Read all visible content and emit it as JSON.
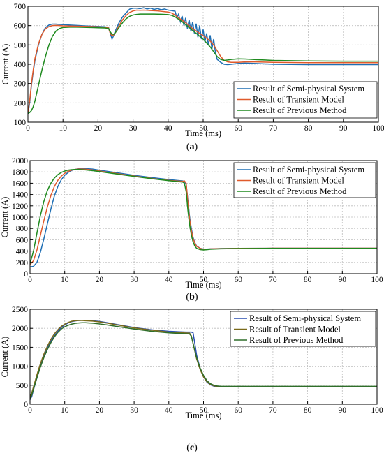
{
  "chart_data": [
    {
      "type": "line",
      "caption_letter": "a",
      "xlabel": "Time (ms)",
      "ylabel": "Current (A)",
      "xlim": [
        0,
        100
      ],
      "ylim": [
        100,
        700
      ],
      "xticks": [
        0,
        10,
        20,
        30,
        40,
        50,
        60,
        70,
        80,
        90,
        100
      ],
      "yticks": [
        100,
        200,
        300,
        400,
        500,
        600,
        700
      ],
      "grid": true,
      "legend_position": "bottom-right",
      "series": [
        {
          "name": "Result of Semi-physical System",
          "color": "#1f6fb4",
          "x": [
            0,
            0.5,
            1,
            1.5,
            2,
            3,
            4,
            5,
            6,
            7,
            8,
            9,
            10,
            12,
            14,
            16,
            18,
            20,
            22,
            23,
            23.5,
            24,
            24.5,
            25,
            26,
            27,
            28,
            29,
            30,
            31,
            32,
            33,
            34,
            35,
            36,
            37,
            38,
            39,
            40,
            41,
            42,
            42.5,
            43,
            43.5,
            44,
            44.5,
            45,
            45.5,
            46,
            46.5,
            47,
            47.5,
            48,
            48.5,
            49,
            49.5,
            50,
            50.5,
            51,
            51.5,
            52,
            52.5,
            53,
            53.5,
            54,
            55,
            56,
            57,
            58,
            60,
            62,
            65,
            70,
            80,
            90,
            100
          ],
          "y": [
            140,
            200,
            290,
            360,
            420,
            500,
            555,
            590,
            603,
            608,
            608,
            606,
            605,
            603,
            601,
            599,
            597,
            596,
            594,
            590,
            560,
            530,
            550,
            575,
            615,
            645,
            665,
            685,
            690,
            690,
            688,
            692,
            686,
            690,
            684,
            688,
            682,
            686,
            680,
            678,
            674,
            640,
            660,
            620,
            650,
            600,
            640,
            585,
            630,
            570,
            620,
            560,
            610,
            540,
            600,
            530,
            580,
            515,
            560,
            500,
            550,
            480,
            530,
            460,
            425,
            410,
            400,
            398,
            400,
            404,
            406,
            404,
            400,
            398,
            398,
            398
          ]
        },
        {
          "name": "Result of Transient Model",
          "color": "#e05a2b",
          "x": [
            0,
            0.5,
            1,
            1.5,
            2,
            3,
            4,
            5,
            6,
            7,
            8,
            9,
            10,
            12,
            14,
            16,
            18,
            20,
            22,
            23,
            23.5,
            24,
            24.5,
            25,
            26,
            27,
            28,
            29,
            30,
            31,
            32,
            33,
            34,
            35,
            36,
            37,
            38,
            39,
            40,
            41,
            42,
            43,
            44,
            45,
            46,
            47,
            48,
            49,
            50,
            51,
            52,
            53,
            54,
            55,
            56,
            57,
            58,
            60,
            62,
            65,
            70,
            80,
            90,
            100
          ],
          "y": [
            150,
            210,
            300,
            370,
            430,
            505,
            555,
            583,
            595,
            600,
            601,
            600,
            599,
            598,
            597,
            596,
            595,
            594,
            592,
            588,
            560,
            548,
            552,
            565,
            600,
            630,
            652,
            668,
            676,
            680,
            679,
            680,
            679,
            678,
            677,
            676,
            674,
            672,
            670,
            665,
            655,
            640,
            628,
            615,
            600,
            585,
            572,
            560,
            548,
            535,
            520,
            500,
            470,
            440,
            420,
            412,
            410,
            410,
            412,
            412,
            410,
            408,
            408,
            408
          ]
        },
        {
          "name": "Result of Previous Method",
          "color": "#1f8a1f",
          "x": [
            0,
            0.5,
            1,
            1.5,
            2,
            3,
            4,
            5,
            6,
            7,
            8,
            9,
            10,
            12,
            14,
            16,
            18,
            20,
            22,
            23,
            23.5,
            24,
            24.5,
            25,
            26,
            27,
            28,
            29,
            30,
            31,
            32,
            34,
            36,
            38,
            40,
            41,
            42,
            43,
            44,
            45,
            46,
            47,
            48,
            49,
            50,
            51,
            52,
            53,
            54,
            55,
            56,
            57,
            58,
            60,
            62,
            65,
            70,
            80,
            90,
            100
          ],
          "y": [
            145,
            150,
            160,
            180,
            210,
            290,
            370,
            440,
            500,
            545,
            572,
            585,
            590,
            592,
            592,
            591,
            590,
            589,
            588,
            585,
            568,
            555,
            555,
            565,
            590,
            615,
            635,
            648,
            655,
            658,
            660,
            660,
            660,
            659,
            657,
            653,
            645,
            633,
            620,
            605,
            590,
            575,
            560,
            545,
            530,
            510,
            490,
            465,
            440,
            425,
            420,
            422,
            425,
            428,
            427,
            424,
            420,
            417,
            416,
            416
          ]
        }
      ]
    },
    {
      "type": "line",
      "caption_letter": "b",
      "xlabel": "Time (ms)",
      "ylabel": "Current (A)",
      "xlim": [
        0,
        100
      ],
      "ylim": [
        0,
        2000
      ],
      "xticks": [
        0,
        10,
        20,
        30,
        40,
        50,
        60,
        70,
        80,
        90,
        100
      ],
      "yticks": [
        0,
        200,
        400,
        600,
        800,
        1000,
        1200,
        1400,
        1600,
        1800,
        2000
      ],
      "grid": true,
      "legend_position": "top-right",
      "series": [
        {
          "name": "Result of Semi-physical System",
          "color": "#1f6fb4",
          "x": [
            0,
            1,
            2,
            3,
            4,
            5,
            6,
            7,
            8,
            9,
            10,
            11,
            12,
            13,
            14,
            15,
            16,
            18,
            20,
            25,
            30,
            35,
            40,
            44,
            44.5,
            45,
            45.5,
            46,
            46.5,
            47,
            47.5,
            48,
            49,
            50,
            51,
            52,
            55,
            60,
            70,
            80,
            90,
            100
          ],
          "y": [
            120,
            130,
            200,
            380,
            620,
            880,
            1140,
            1370,
            1540,
            1660,
            1740,
            1790,
            1825,
            1845,
            1855,
            1860,
            1860,
            1850,
            1830,
            1785,
            1740,
            1700,
            1665,
            1640,
            1630,
            1580,
            1300,
            1000,
            800,
            640,
            550,
            490,
            450,
            435,
            435,
            440,
            445,
            448,
            450,
            450,
            450,
            450
          ]
        },
        {
          "name": "Result of Transient Model",
          "color": "#e05a2b",
          "x": [
            0,
            1,
            2,
            3,
            4,
            5,
            6,
            7,
            8,
            9,
            10,
            11,
            12,
            13,
            14,
            15,
            16,
            18,
            20,
            25,
            30,
            35,
            40,
            44,
            44.5,
            45,
            45.5,
            46,
            46.5,
            47,
            47.5,
            48,
            49,
            50,
            51,
            52,
            55,
            60,
            70,
            80,
            90,
            100
          ],
          "y": [
            160,
            230,
            420,
            680,
            940,
            1180,
            1380,
            1540,
            1650,
            1725,
            1775,
            1810,
            1832,
            1845,
            1850,
            1850,
            1847,
            1835,
            1815,
            1770,
            1727,
            1685,
            1650,
            1632,
            1640,
            1600,
            1260,
            960,
            760,
            620,
            540,
            485,
            448,
            432,
            432,
            438,
            443,
            447,
            450,
            450,
            450,
            450
          ]
        },
        {
          "name": "Result of Previous Method",
          "color": "#1f8a1f",
          "x": [
            0,
            1,
            2,
            3,
            4,
            5,
            6,
            7,
            8,
            9,
            10,
            11,
            12,
            13,
            14,
            15,
            16,
            18,
            20,
            25,
            30,
            35,
            40,
            44,
            44.5,
            45,
            45.5,
            46,
            46.5,
            47,
            47.5,
            48,
            49,
            50,
            51,
            52,
            55,
            60,
            70,
            80,
            90,
            100
          ],
          "y": [
            180,
            400,
            720,
            1030,
            1280,
            1470,
            1600,
            1690,
            1750,
            1790,
            1815,
            1832,
            1840,
            1843,
            1843,
            1840,
            1835,
            1822,
            1805,
            1762,
            1720,
            1680,
            1645,
            1620,
            1600,
            1450,
            1120,
            860,
            680,
            560,
            490,
            450,
            425,
            420,
            425,
            432,
            440,
            445,
            448,
            448,
            448,
            448
          ]
        }
      ]
    },
    {
      "type": "line",
      "caption_letter": "c",
      "xlabel": "Time (ms)",
      "ylabel": "Current (A)",
      "xlim": [
        0,
        100
      ],
      "ylim": [
        0,
        2500
      ],
      "xticks": [
        0,
        10,
        20,
        30,
        40,
        50,
        60,
        70,
        80,
        90,
        100
      ],
      "yticks": [
        0,
        500,
        1000,
        1500,
        2000,
        2500
      ],
      "grid": true,
      "legend_position": "top-right",
      "series": [
        {
          "name": "Result of Semi-physical System",
          "color": "#2a4fb0",
          "x": [
            0,
            0.5,
            1,
            2,
            3,
            4,
            5,
            6,
            7,
            8,
            9,
            10,
            11,
            12,
            13,
            14,
            15,
            16,
            17,
            18,
            20,
            22,
            25,
            30,
            35,
            40,
            45,
            46.5,
            47,
            47.5,
            48,
            49,
            50,
            51,
            52,
            53,
            54,
            55,
            56,
            58,
            60,
            70,
            80,
            90,
            100
          ],
          "y": [
            120,
            200,
            380,
            700,
            1000,
            1260,
            1480,
            1660,
            1800,
            1920,
            2020,
            2090,
            2140,
            2175,
            2195,
            2205,
            2210,
            2210,
            2205,
            2200,
            2180,
            2150,
            2100,
            2020,
            1960,
            1920,
            1900,
            1900,
            1880,
            1600,
            1300,
            950,
            720,
            580,
            510,
            475,
            460,
            455,
            455,
            458,
            460,
            460,
            460,
            460,
            460
          ]
        },
        {
          "name": "Result of Transient Model",
          "color": "#7a6a1a",
          "x": [
            0,
            0.5,
            1,
            2,
            3,
            4,
            5,
            6,
            7,
            8,
            9,
            10,
            11,
            12,
            13,
            14,
            15,
            16,
            17,
            18,
            20,
            22,
            25,
            30,
            35,
            40,
            45,
            46,
            46.5,
            47,
            47.5,
            48,
            49,
            50,
            51,
            52,
            53,
            54,
            55,
            56,
            58,
            60,
            70,
            80,
            90,
            100
          ],
          "y": [
            200,
            300,
            460,
            780,
            1070,
            1320,
            1530,
            1710,
            1850,
            1960,
            2050,
            2110,
            2155,
            2185,
            2200,
            2205,
            2205,
            2200,
            2195,
            2190,
            2170,
            2140,
            2090,
            2010,
            1950,
            1900,
            1875,
            1870,
            1800,
            1600,
            1400,
            1200,
            920,
            720,
            590,
            520,
            485,
            470,
            465,
            465,
            465,
            465,
            465,
            465,
            465,
            465
          ]
        },
        {
          "name": "Result of Previous Method",
          "color": "#2f6e2a",
          "x": [
            0,
            0.5,
            1,
            2,
            3,
            4,
            5,
            6,
            7,
            8,
            9,
            10,
            11,
            12,
            13,
            14,
            15,
            16,
            17,
            18,
            20,
            22,
            25,
            30,
            35,
            40,
            45,
            46,
            46.5,
            47,
            47.5,
            48,
            49,
            50,
            51,
            52,
            53,
            54,
            55,
            56,
            58,
            60,
            70,
            80,
            90,
            100
          ],
          "y": [
            150,
            240,
            400,
            700,
            980,
            1230,
            1440,
            1620,
            1770,
            1890,
            1980,
            2040,
            2080,
            2110,
            2130,
            2140,
            2145,
            2145,
            2140,
            2135,
            2115,
            2090,
            2050,
            1980,
            1920,
            1880,
            1855,
            1850,
            1790,
            1600,
            1410,
            1230,
            960,
            760,
            620,
            540,
            500,
            480,
            472,
            470,
            470,
            470,
            470,
            470,
            470,
            470
          ]
        }
      ]
    }
  ]
}
